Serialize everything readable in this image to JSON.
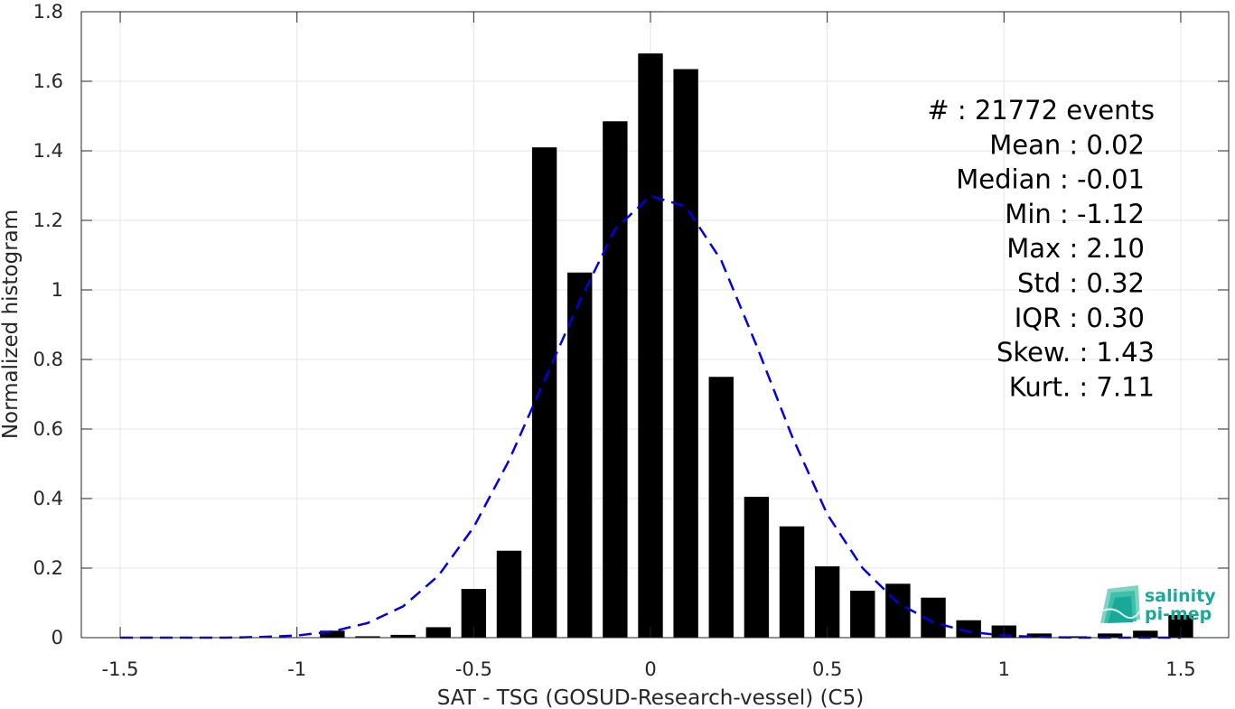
{
  "chart_data": {
    "type": "bar",
    "xlabel": "SAT - TSG (GOSUD-Research-vessel) (C5)",
    "ylabel": "Normalized histogram",
    "xlim": [
      -1.5,
      1.5
    ],
    "ylim": [
      0,
      1.8
    ],
    "x_ticks": [
      -1.5,
      -1,
      -0.5,
      0,
      0.5,
      1,
      1.5
    ],
    "x_tick_labels": [
      "-1.5",
      "-1",
      "-0.5",
      "0",
      "0.5",
      "1",
      "1.5"
    ],
    "y_ticks": [
      0,
      0.2,
      0.4,
      0.6,
      0.8,
      1,
      1.2,
      1.4,
      1.6,
      1.8
    ],
    "y_tick_labels": [
      "0",
      "0.2",
      "0.4",
      "0.6",
      "0.8",
      "1",
      "1.2",
      "1.4",
      "1.6",
      "1.8"
    ],
    "grid": true,
    "bar_color": "#000000",
    "bar_width": 0.07,
    "bars": {
      "x": [
        -0.9,
        -0.8,
        -0.7,
        -0.6,
        -0.5,
        -0.4,
        -0.3,
        -0.2,
        -0.1,
        0.0,
        0.1,
        0.2,
        0.3,
        0.4,
        0.5,
        0.6,
        0.7,
        0.8,
        0.9,
        1.0,
        1.1,
        1.2,
        1.3,
        1.4,
        1.5
      ],
      "values": [
        0.02,
        0.004,
        0.008,
        0.03,
        0.14,
        0.25,
        1.41,
        1.05,
        1.485,
        1.68,
        1.635,
        0.75,
        0.405,
        0.32,
        0.205,
        0.135,
        0.155,
        0.115,
        0.05,
        0.035,
        0.012,
        0.004,
        0.012,
        0.02,
        0.065
      ]
    },
    "fit_curve": {
      "style": "dashed",
      "color": "#0000e6",
      "x": [
        -1.5,
        -1.4,
        -1.3,
        -1.2,
        -1.1,
        -1.0,
        -0.9,
        -0.8,
        -0.7,
        -0.6,
        -0.5,
        -0.4,
        -0.3,
        -0.2,
        -0.1,
        0.0,
        0.1,
        0.2,
        0.3,
        0.4,
        0.5,
        0.6,
        0.7,
        0.8,
        0.9,
        1.0,
        1.1,
        1.2,
        1.3,
        1.4,
        1.5
      ],
      "y": [
        0.0,
        0.0,
        0.0,
        0.0,
        0.002,
        0.006,
        0.018,
        0.042,
        0.09,
        0.178,
        0.318,
        0.51,
        0.74,
        0.968,
        1.175,
        1.27,
        1.24,
        1.085,
        0.84,
        0.58,
        0.355,
        0.2,
        0.1,
        0.044,
        0.017,
        0.006,
        0.002,
        0.0,
        0.0,
        0.0,
        0.0
      ]
    },
    "stats": [
      {
        "label": "#  : 21772 events"
      },
      {
        "label": "Mean : 0.02"
      },
      {
        "label": "Median : -0.01"
      },
      {
        "label": "Min : -1.12"
      },
      {
        "label": "Max : 2.10"
      },
      {
        "label": "Std : 0.32"
      },
      {
        "label": "IQR : 0.30"
      },
      {
        "label": "Skew. : 1.43"
      },
      {
        "label": "Kurt. : 7.11"
      }
    ]
  },
  "logo": {
    "line1": "salinity",
    "line2": "pi-mep",
    "color": "#1aa89a"
  }
}
